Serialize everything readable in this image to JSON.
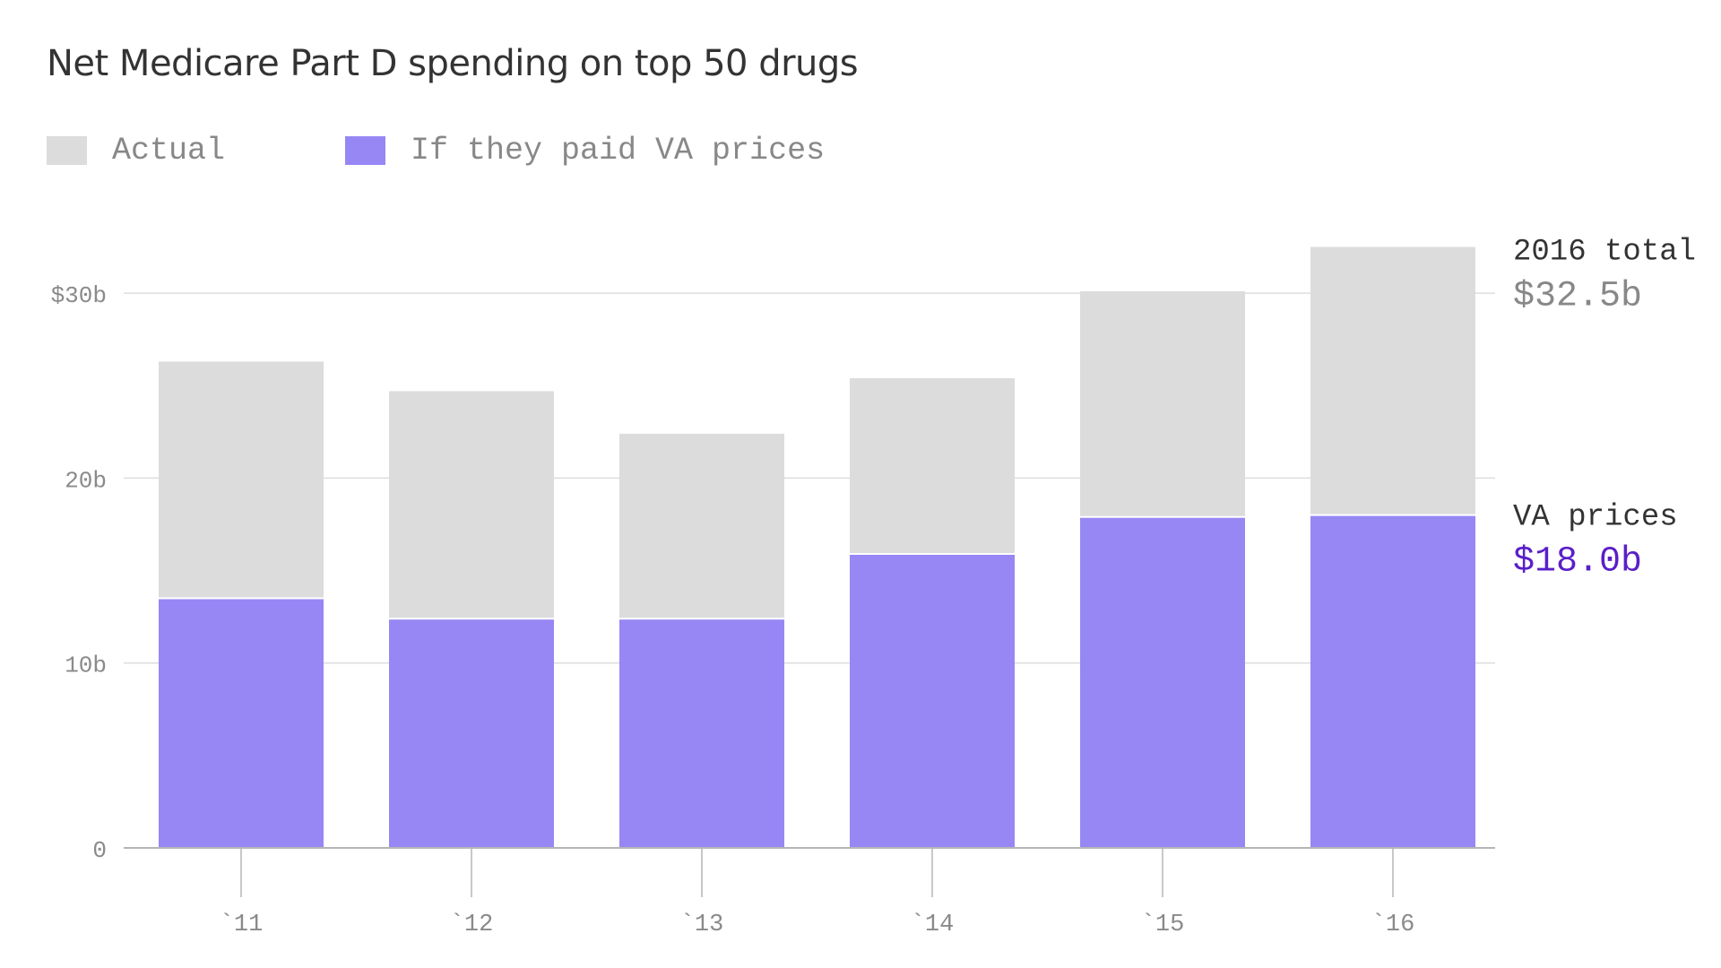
{
  "chart_data": {
    "type": "bar",
    "stacked_overlay": true,
    "title": "Net Medicare Part D spending on top 50 drugs",
    "categories": [
      "`11",
      "`12",
      "`13",
      "`14",
      "`15",
      "`16"
    ],
    "series": [
      {
        "name": "Actual",
        "color": "#dcdcdc",
        "values": [
          26.3,
          24.7,
          22.4,
          25.4,
          30.1,
          32.5
        ]
      },
      {
        "name": "If they paid VA prices",
        "color": "#9787f5",
        "values": [
          13.5,
          12.4,
          12.4,
          15.9,
          17.9,
          18.0
        ]
      }
    ],
    "y_ticks": [
      {
        "value": 0,
        "label": "0"
      },
      {
        "value": 10,
        "label": "10b"
      },
      {
        "value": 20,
        "label": "20b"
      },
      {
        "value": 30,
        "label": "$30b"
      }
    ],
    "ylim": [
      0,
      33
    ],
    "grid": true,
    "legend_position": "top-left",
    "annotations": {
      "total_label": "2016 total",
      "total_value": "$32.5b",
      "total_value_color": "#888888",
      "va_label": "VA prices",
      "va_value": "$18.0b",
      "va_value_color": "#5a1fc8"
    },
    "colors": {
      "axis": "#b5b5b5",
      "grid": "#dddddd",
      "tick_text": "#8a8a8a",
      "annotation_text": "#333333"
    }
  }
}
